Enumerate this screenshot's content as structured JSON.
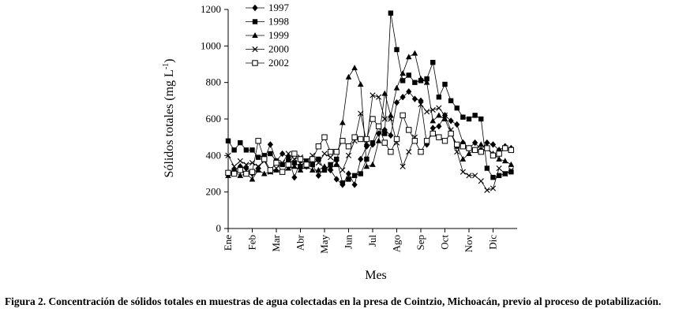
{
  "caption": {
    "label": "Figura 2.",
    "text": "Concentración de sólidos totales en muestras de agua colectadas en la presa de Cointzio, Michoacán, previo al proceso de potabilización."
  },
  "chart_data": {
    "type": "line",
    "title": "",
    "xlabel": "Mes",
    "ylabel": "Sólidos totales (mg L",
    "ylabel_superscript": "-1",
    "ylabel_suffix": ")",
    "ylim": [
      0,
      1200
    ],
    "yticks": [
      0,
      200,
      400,
      600,
      800,
      1000,
      1200
    ],
    "xlim": [
      0,
      48
    ],
    "month_ticks": [
      {
        "label": "Ene",
        "x": 0
      },
      {
        "label": "Feb",
        "x": 4
      },
      {
        "label": "Mar",
        "x": 8
      },
      {
        "label": "Abr",
        "x": 12
      },
      {
        "label": "May",
        "x": 16
      },
      {
        "label": "Jun",
        "x": 20
      },
      {
        "label": "Jul",
        "x": 24
      },
      {
        "label": "Ago",
        "x": 28
      },
      {
        "label": "Sep",
        "x": 32
      },
      {
        "label": "Oct",
        "x": 36
      },
      {
        "label": "Nov",
        "x": 40
      },
      {
        "label": "Dic",
        "x": 44
      }
    ],
    "grid": false,
    "legend_position": "top-left",
    "series": [
      {
        "name": "1997",
        "marker": "diamond",
        "x": [
          0,
          1,
          2,
          3,
          4,
          5,
          6,
          7,
          8,
          9,
          10,
          11,
          12,
          13,
          14,
          15,
          16,
          17,
          18,
          19,
          20,
          21,
          22,
          23,
          24,
          25,
          26,
          27,
          28,
          29,
          30,
          31,
          32,
          33,
          34,
          35,
          36,
          37,
          38,
          39,
          40,
          41,
          42,
          43,
          44,
          45,
          46,
          47
        ],
        "values": [
          300,
          320,
          340,
          330,
          300,
          330,
          380,
          460,
          370,
          410,
          390,
          280,
          370,
          340,
          350,
          290,
          330,
          320,
          270,
          240,
          300,
          240,
          380,
          450,
          460,
          520,
          540,
          510,
          690,
          720,
          750,
          710,
          700,
          460,
          550,
          560,
          620,
          590,
          570,
          470,
          440,
          470,
          430,
          470,
          460,
          430,
          450,
          440
        ]
      },
      {
        "name": "1998",
        "marker": "square-filled",
        "x": [
          0,
          1,
          2,
          3,
          4,
          5,
          6,
          7,
          8,
          9,
          10,
          11,
          12,
          13,
          14,
          15,
          16,
          17,
          18,
          19,
          20,
          21,
          22,
          23,
          24,
          25,
          26,
          27,
          28,
          29,
          30,
          31,
          32,
          33,
          34,
          35,
          36,
          37,
          38,
          39,
          40,
          41,
          42,
          43,
          44,
          45,
          46,
          47
        ],
        "values": [
          480,
          430,
          470,
          430,
          430,
          390,
          400,
          410,
          370,
          350,
          370,
          360,
          340,
          370,
          350,
          380,
          320,
          350,
          380,
          250,
          270,
          290,
          300,
          380,
          470,
          560,
          520,
          1180,
          980,
          810,
          840,
          800,
          810,
          820,
          910,
          720,
          790,
          700,
          660,
          610,
          600,
          620,
          600,
          330,
          280,
          290,
          300,
          310
        ]
      },
      {
        "name": "1999",
        "marker": "triangle",
        "x": [
          0,
          1,
          2,
          3,
          4,
          5,
          6,
          7,
          8,
          9,
          10,
          11,
          12,
          13,
          14,
          15,
          16,
          17,
          18,
          19,
          20,
          21,
          22,
          23,
          24,
          25,
          26,
          27,
          28,
          29,
          30,
          31,
          32,
          33,
          34,
          35,
          36,
          37,
          38,
          39,
          40,
          41,
          42,
          43,
          44,
          45,
          46,
          47
        ],
        "values": [
          290,
          310,
          290,
          300,
          270,
          320,
          300,
          310,
          320,
          310,
          330,
          340,
          320,
          340,
          320,
          320,
          340,
          330,
          350,
          580,
          830,
          880,
          790,
          340,
          350,
          480,
          740,
          620,
          770,
          850,
          940,
          960,
          820,
          800,
          590,
          620,
          600,
          520,
          450,
          380,
          410,
          430,
          460,
          440,
          410,
          380,
          370,
          350
        ]
      },
      {
        "name": "2000",
        "marker": "x",
        "x": [
          0,
          1,
          2,
          3,
          4,
          5,
          6,
          7,
          8,
          9,
          10,
          11,
          12,
          13,
          14,
          15,
          16,
          17,
          18,
          19,
          20,
          21,
          22,
          23,
          24,
          25,
          26,
          27,
          28,
          29,
          30,
          31,
          32,
          33,
          34,
          35,
          36,
          37,
          38,
          39,
          40,
          41,
          42,
          43,
          44,
          45,
          46,
          47
        ],
        "values": [
          400,
          340,
          370,
          350,
          360,
          340,
          370,
          310,
          330,
          360,
          410,
          380,
          390,
          370,
          400,
          360,
          410,
          390,
          360,
          320,
          400,
          480,
          630,
          470,
          730,
          720,
          600,
          600,
          470,
          340,
          420,
          500,
          680,
          640,
          650,
          660,
          620,
          540,
          420,
          310,
          290,
          290,
          260,
          210,
          220,
          330,
          300,
          320
        ]
      },
      {
        "name": "2002",
        "marker": "square-open",
        "x": [
          0,
          1,
          2,
          3,
          4,
          5,
          6,
          7,
          8,
          9,
          10,
          11,
          12,
          13,
          14,
          15,
          16,
          17,
          18,
          19,
          20,
          21,
          22,
          23,
          24,
          25,
          26,
          27,
          28,
          29,
          30,
          31,
          32,
          33,
          34,
          35,
          36,
          37,
          38,
          39,
          40,
          41,
          42,
          43,
          44,
          45,
          46,
          47
        ],
        "values": [
          305,
          300,
          320,
          300,
          310,
          480,
          380,
          320,
          360,
          310,
          350,
          410,
          380,
          350,
          380,
          450,
          500,
          420,
          420,
          480,
          450,
          500,
          490,
          490,
          600,
          560,
          470,
          420,
          490,
          620,
          540,
          480,
          420,
          480,
          520,
          500,
          480,
          520,
          460,
          450,
          440,
          430,
          420,
          440,
          400,
          410,
          440,
          430
        ]
      }
    ]
  }
}
